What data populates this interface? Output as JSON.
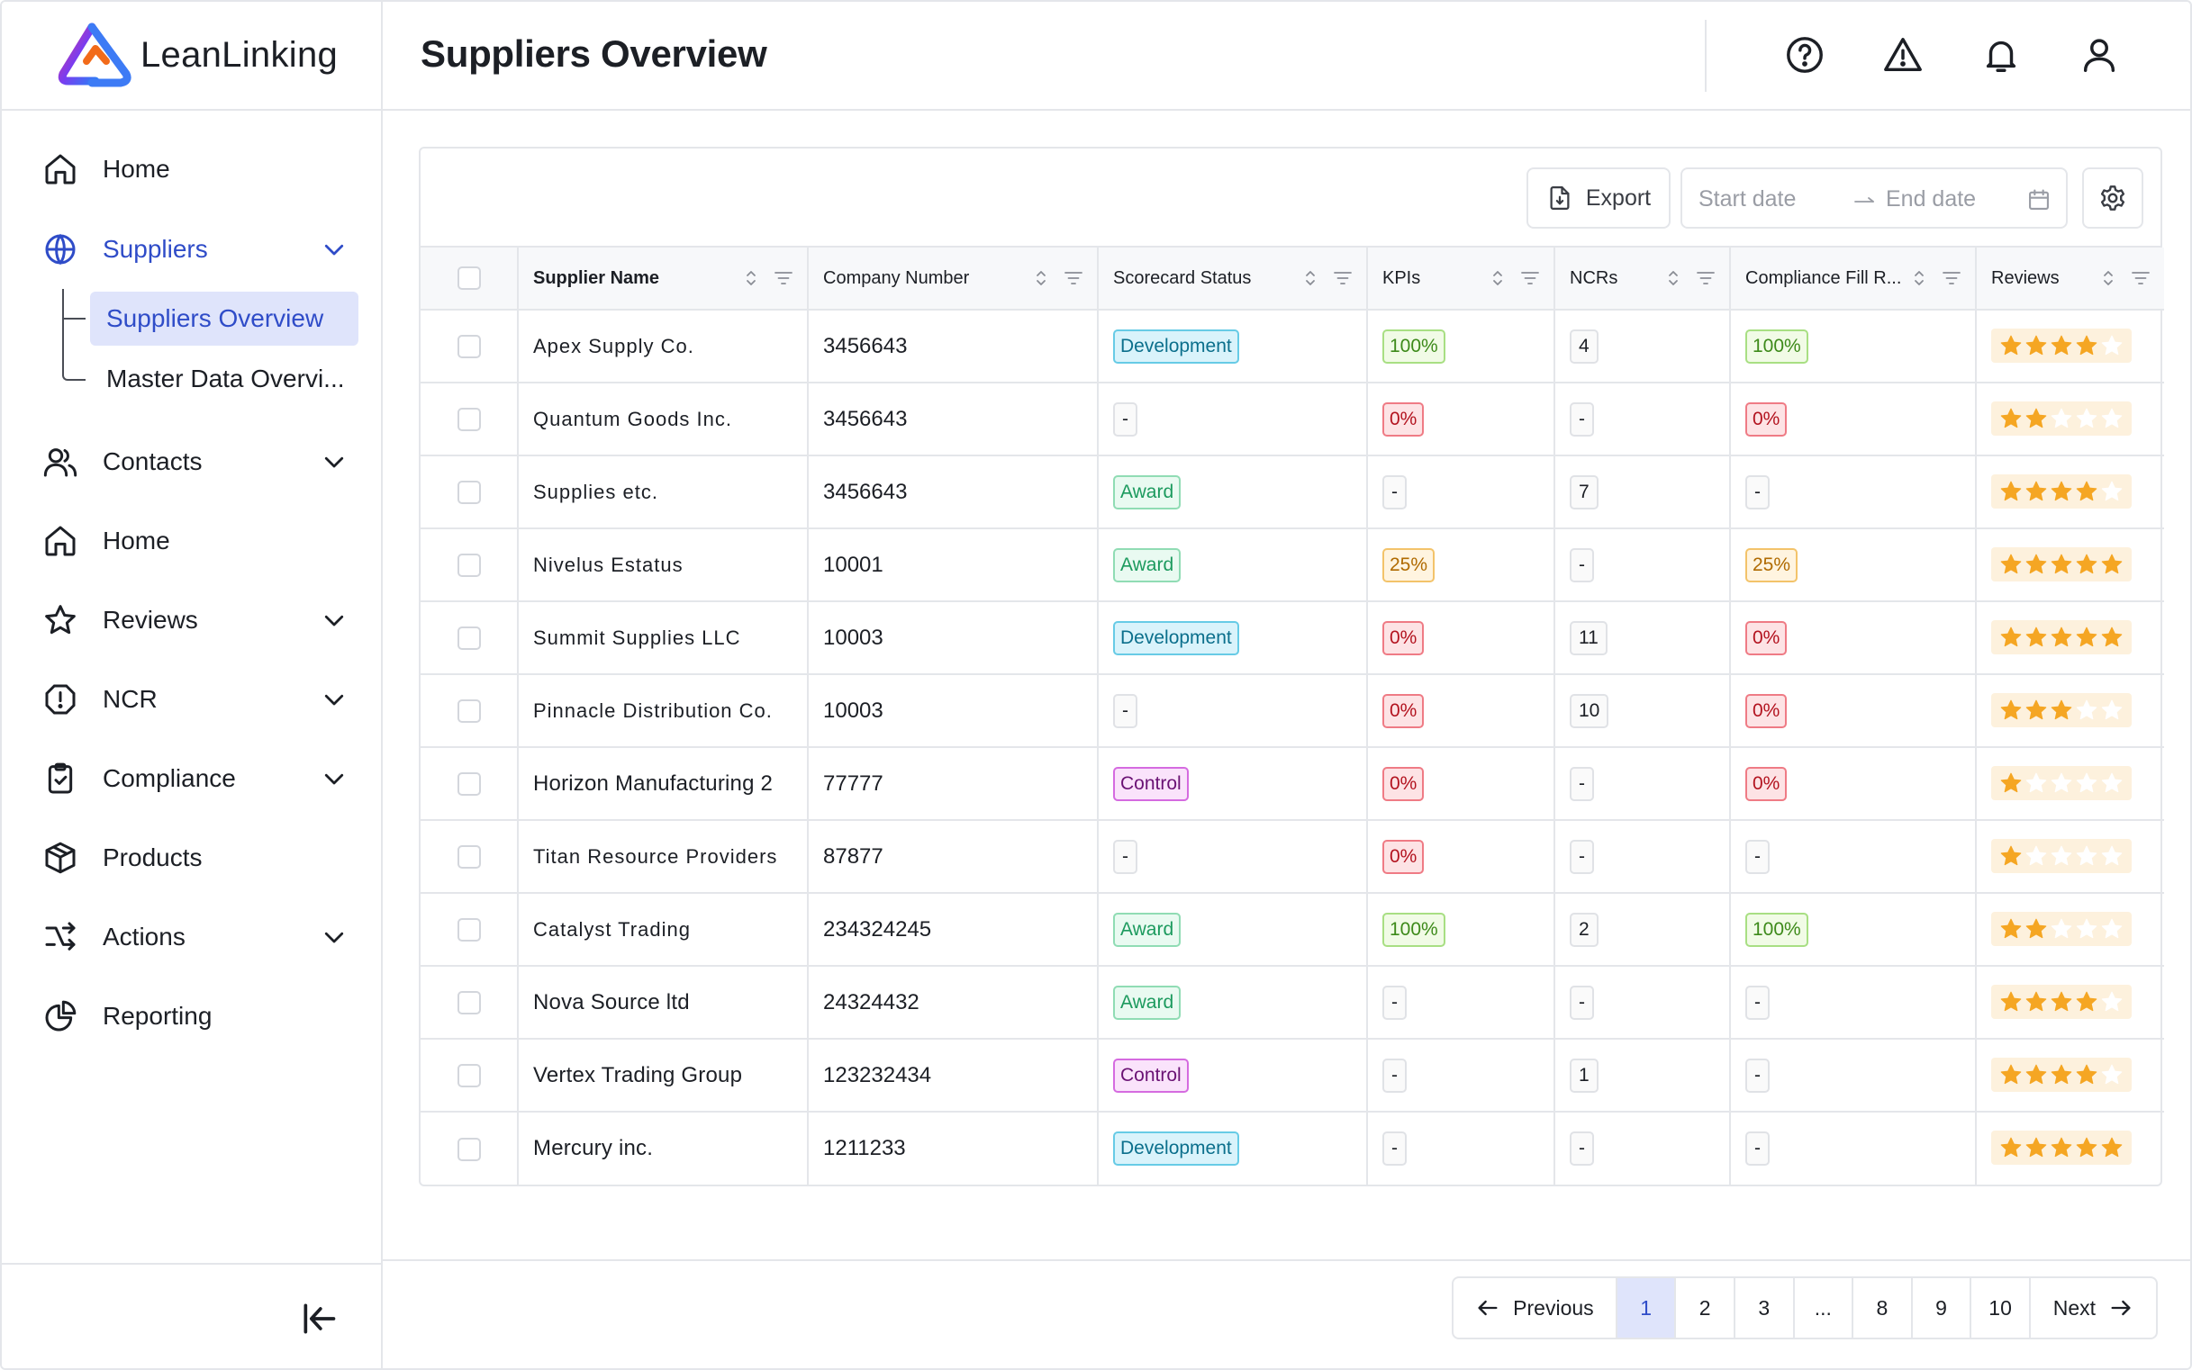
{
  "app": {
    "logo_text": "LeanLinking"
  },
  "header": {
    "title": "Suppliers Overview"
  },
  "sidebar": {
    "items": [
      {
        "label": "Home",
        "icon": "home-icon"
      },
      {
        "label": "Suppliers",
        "icon": "globe-icon",
        "expanded": true,
        "active": true
      },
      {
        "label": "Contacts",
        "icon": "users-icon"
      },
      {
        "label": "Home",
        "icon": "home-icon"
      },
      {
        "label": "Reviews",
        "icon": "star-icon"
      },
      {
        "label": "NCR",
        "icon": "alert-circle-icon"
      },
      {
        "label": "Compliance",
        "icon": "clipboard-check-icon"
      },
      {
        "label": "Products",
        "icon": "box-icon"
      },
      {
        "label": "Actions",
        "icon": "arrows-icon"
      },
      {
        "label": "Reporting",
        "icon": "pie-chart-icon"
      }
    ],
    "suppliers_sub": [
      {
        "label": "Suppliers Overview",
        "active": true
      },
      {
        "label": "Master Data Overvi..."
      }
    ]
  },
  "toolbar": {
    "export_label": "Export",
    "start_placeholder": "Start date",
    "end_placeholder": "End date"
  },
  "table": {
    "columns": [
      "Supplier Name",
      "Company Number",
      "Scorecard Status",
      "KPIs",
      "NCRs",
      "Compliance Fill R...",
      "Reviews"
    ],
    "rows": [
      {
        "name": "Apex Supply Co.",
        "number": "3456643",
        "status": "Development",
        "kpi": "100%",
        "ncr": "4",
        "compliance": "100%",
        "rating": 4
      },
      {
        "name": "Quantum Goods Inc.",
        "number": "3456643",
        "status": "-",
        "kpi": "0%",
        "ncr": "-",
        "compliance": "0%",
        "rating": 2
      },
      {
        "name": "Supplies etc.",
        "number": "3456643",
        "status": "Award",
        "kpi": "-",
        "ncr": "7",
        "compliance": "-",
        "rating": 4
      },
      {
        "name": "Nivelus Estatus",
        "number": "10001",
        "status": "Award",
        "kpi": "25%",
        "ncr": "-",
        "compliance": "25%",
        "rating": 5
      },
      {
        "name": "Summit Supplies LLC",
        "number": "10003",
        "status": "Development",
        "kpi": "0%",
        "ncr": "11",
        "compliance": "0%",
        "rating": 5
      },
      {
        "name": "Pinnacle Distribution Co.",
        "number": "10003",
        "status": "-",
        "kpi": "0%",
        "ncr": "10",
        "compliance": "0%",
        "rating": 3
      },
      {
        "name": "Horizon Manufacturing  2",
        "number": "77777",
        "status": "Control",
        "kpi": "0%",
        "ncr": "-",
        "compliance": "0%",
        "rating": 1
      },
      {
        "name": "Titan Resource Providers",
        "number": "87877",
        "status": "-",
        "kpi": "0%",
        "ncr": "-",
        "compliance": "-",
        "rating": 1
      },
      {
        "name": "Catalyst Trading",
        "number": "234324245",
        "status": "Award",
        "kpi": "100%",
        "ncr": "2",
        "compliance": "100%",
        "rating": 2
      },
      {
        "name": "Nova Source ltd",
        "number": "24324432",
        "status": "Award",
        "kpi": "-",
        "ncr": "-",
        "compliance": "-",
        "rating": 4
      },
      {
        "name": "Vertex Trading Group",
        "number": "123232434",
        "status": "Control",
        "kpi": "-",
        "ncr": "1",
        "compliance": "-",
        "rating": 4
      },
      {
        "name": "Mercury inc.",
        "number": "1211233",
        "status": "Development",
        "kpi": "-",
        "ncr": "-",
        "compliance": "-",
        "rating": 5
      }
    ]
  },
  "pagination": {
    "prev_label": "Previous",
    "next_label": "Next",
    "pages": [
      "1",
      "2",
      "3",
      "...",
      "8",
      "9",
      "10"
    ],
    "current": "1"
  },
  "colors": {
    "accent": "#2f4cc8",
    "active_bg": "#dfe4fb",
    "star": "#f5a623"
  }
}
